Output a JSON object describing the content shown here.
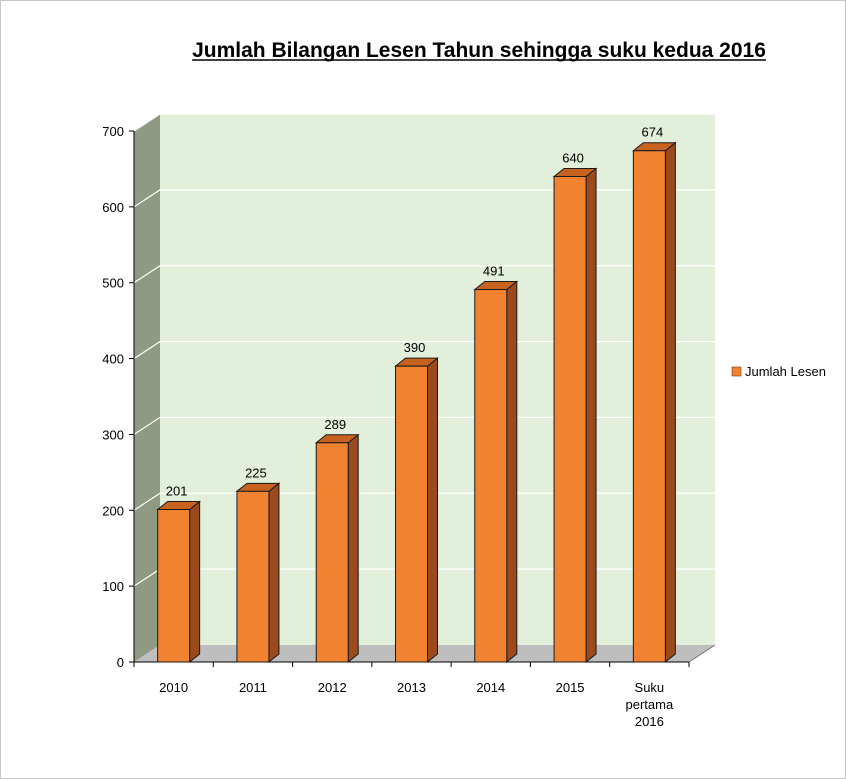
{
  "chart_data": {
    "type": "bar",
    "title": "Jumlah Bilangan Lesen Tahun sehingga suku kedua 2016",
    "categories": [
      "2010",
      "2011",
      "2012",
      "2013",
      "2014",
      "2015",
      "Suku pertama 2016"
    ],
    "series": [
      {
        "name": "Jumlah Lesen",
        "values": [
          201,
          225,
          289,
          390,
          491,
          640,
          674
        ],
        "color": "#f08230"
      }
    ],
    "xlabel": "",
    "ylabel": "",
    "ylim": [
      0,
      700
    ],
    "yticks": [
      0,
      100,
      200,
      300,
      400,
      500,
      600,
      700
    ],
    "grid": true,
    "legend": "right",
    "style": "3d-column",
    "colors": {
      "bar_front": "#f08230",
      "bar_side": "#9a4a1c",
      "bar_top": "#c8621f",
      "back_wall": "#e2efda",
      "side_wall": "#8f9a82",
      "floor": "#bebebe"
    }
  }
}
